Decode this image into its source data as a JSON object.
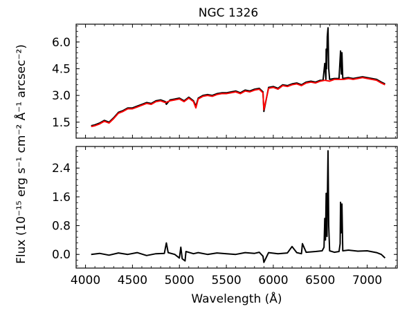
{
  "chart_data": [
    {
      "type": "line",
      "panel": "top",
      "title": "NGC 1326",
      "xlabel": "",
      "ylabel": "",
      "xlim": [
        3900,
        7320
      ],
      "ylim": [
        0.6,
        7.0
      ],
      "x_ticks": [
        4000,
        4500,
        5000,
        5500,
        6000,
        6500,
        7000
      ],
      "y_ticks": [
        1.5,
        3.0,
        4.5,
        6.0
      ],
      "y_tick_labels": [
        "1.5",
        "3.0",
        "4.5",
        "6.0"
      ],
      "series": [
        {
          "color": "#000000",
          "x": [
            4060,
            4100,
            4150,
            4200,
            4250,
            4300,
            4350,
            4400,
            4450,
            4500,
            4550,
            4600,
            4650,
            4700,
            4750,
            4800,
            4850,
            4861,
            4900,
            4950,
            5000,
            5050,
            5100,
            5150,
            5175,
            5200,
            5250,
            5300,
            5350,
            5400,
            5450,
            5500,
            5550,
            5600,
            5650,
            5700,
            5750,
            5800,
            5850,
            5890,
            5900,
            5950,
            6000,
            6050,
            6100,
            6150,
            6200,
            6250,
            6300,
            6350,
            6400,
            6450,
            6500,
            6530,
            6548,
            6560,
            6563,
            6568,
            6575,
            6583,
            6590,
            6600,
            6650,
            6700,
            6716,
            6725,
            6731,
            6740,
            6800,
            6850,
            6900,
            6950,
            7000,
            7050,
            7100,
            7150,
            7190
          ],
          "y": [
            1.3,
            1.35,
            1.45,
            1.6,
            1.5,
            1.75,
            2.05,
            2.15,
            2.3,
            2.3,
            2.4,
            2.5,
            2.6,
            2.55,
            2.7,
            2.75,
            2.65,
            2.5,
            2.75,
            2.8,
            2.85,
            2.7,
            2.9,
            2.7,
            2.4,
            2.85,
            3.0,
            3.05,
            3.0,
            3.1,
            3.15,
            3.15,
            3.2,
            3.25,
            3.15,
            3.3,
            3.25,
            3.35,
            3.4,
            3.2,
            2.1,
            3.45,
            3.5,
            3.4,
            3.6,
            3.55,
            3.65,
            3.7,
            3.6,
            3.75,
            3.8,
            3.75,
            3.85,
            3.85,
            4.8,
            3.9,
            5.6,
            4.5,
            6.3,
            6.8,
            4.5,
            3.9,
            3.95,
            3.95,
            5.5,
            4.2,
            5.4,
            3.95,
            4.0,
            3.95,
            4.0,
            4.05,
            4.0,
            3.95,
            3.9,
            3.75,
            3.65
          ]
        },
        {
          "color": "#ff0000",
          "x": [
            4060,
            4100,
            4150,
            4200,
            4250,
            4300,
            4350,
            4400,
            4450,
            4500,
            4550,
            4600,
            4650,
            4700,
            4750,
            4800,
            4850,
            4900,
            4950,
            5000,
            5050,
            5100,
            5150,
            5175,
            5200,
            5250,
            5300,
            5350,
            5400,
            5450,
            5500,
            5550,
            5600,
            5650,
            5700,
            5750,
            5800,
            5850,
            5890,
            5900,
            5950,
            6000,
            6050,
            6100,
            6150,
            6200,
            6250,
            6300,
            6350,
            6400,
            6450,
            6500,
            6550,
            6600,
            6650,
            6700,
            6750,
            6800,
            6850,
            6900,
            6950,
            7000,
            7050,
            7100,
            7150,
            7190
          ],
          "y": [
            1.25,
            1.3,
            1.4,
            1.55,
            1.45,
            1.7,
            2.0,
            2.1,
            2.25,
            2.25,
            2.35,
            2.45,
            2.55,
            2.5,
            2.65,
            2.7,
            2.6,
            2.7,
            2.75,
            2.8,
            2.65,
            2.85,
            2.65,
            2.3,
            2.8,
            2.95,
            3.0,
            2.95,
            3.05,
            3.1,
            3.1,
            3.15,
            3.2,
            3.1,
            3.25,
            3.2,
            3.3,
            3.35,
            3.15,
            2.2,
            3.4,
            3.45,
            3.35,
            3.55,
            3.5,
            3.6,
            3.65,
            3.55,
            3.7,
            3.75,
            3.7,
            3.8,
            3.85,
            3.8,
            3.9,
            3.9,
            3.9,
            3.95,
            3.9,
            3.95,
            4.0,
            3.95,
            3.9,
            3.85,
            3.7,
            3.6
          ]
        }
      ]
    },
    {
      "type": "line",
      "panel": "bottom",
      "xlabel": "Wavelength (Å)",
      "ylabel": "Flux (10⁻¹⁵ erg s⁻¹ cm⁻² Å⁻¹ arcsec⁻²)",
      "xlim": [
        3900,
        7320
      ],
      "ylim": [
        -0.38,
        3.0
      ],
      "x_ticks": [
        4000,
        4500,
        5000,
        5500,
        6000,
        6500,
        7000
      ],
      "x_tick_labels": [
        "4000",
        "4500",
        "5000",
        "5500",
        "6000",
        "6500",
        "7000"
      ],
      "y_ticks": [
        0.0,
        0.8,
        1.6,
        2.4
      ],
      "y_tick_labels": [
        "0.0",
        "0.8",
        "1.6",
        "2.4"
      ],
      "series": [
        {
          "color": "#000000",
          "x": [
            4060,
            4150,
            4250,
            4350,
            4450,
            4550,
            4650,
            4750,
            4840,
            4861,
            4880,
            4950,
            5000,
            5015,
            5030,
            5060,
            5070,
            5150,
            5200,
            5300,
            5400,
            5500,
            5600,
            5700,
            5800,
            5850,
            5890,
            5900,
            5950,
            6050,
            6150,
            6200,
            6250,
            6300,
            6310,
            6350,
            6450,
            6520,
            6540,
            6548,
            6556,
            6563,
            6572,
            6578,
            6583,
            6590,
            6600,
            6650,
            6700,
            6712,
            6716,
            6722,
            6731,
            6740,
            6800,
            6900,
            7000,
            7100,
            7150,
            7190
          ],
          "y": [
            0.0,
            0.03,
            -0.02,
            0.04,
            0.0,
            0.05,
            -0.03,
            0.02,
            0.03,
            0.32,
            0.05,
            0.0,
            -0.1,
            0.2,
            -0.12,
            -0.18,
            0.08,
            0.02,
            0.05,
            0.0,
            0.04,
            0.02,
            0.0,
            0.05,
            0.03,
            0.06,
            -0.05,
            -0.22,
            0.05,
            0.02,
            0.04,
            0.22,
            0.05,
            0.02,
            0.3,
            0.06,
            0.08,
            0.1,
            0.2,
            1.0,
            0.4,
            1.7,
            0.5,
            1.9,
            2.88,
            0.8,
            0.1,
            0.06,
            0.08,
            0.3,
            1.45,
            0.6,
            1.4,
            0.1,
            0.12,
            0.09,
            0.1,
            0.05,
            0.0,
            -0.1
          ]
        }
      ]
    }
  ]
}
